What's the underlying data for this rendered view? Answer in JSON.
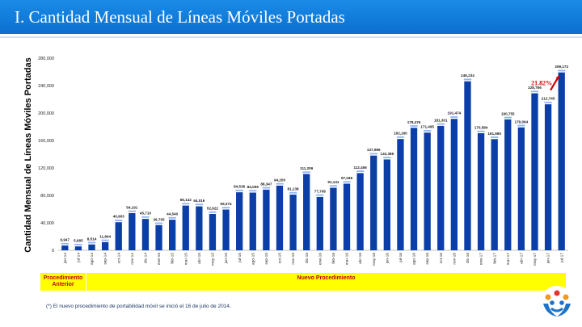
{
  "header": {
    "title": "I. Cantidad Mensual de Líneas Móviles Portadas"
  },
  "chart_data": {
    "type": "bar",
    "title": "",
    "ylabel": "Cantidad Mensual de Líneas Móviles Portadas",
    "xlabel": "",
    "ylim": [
      0,
      280000
    ],
    "yticks": [
      "0",
      "40,000",
      "80,000",
      "120,000",
      "160,000",
      "200,000",
      "240,000",
      "280,000"
    ],
    "ytick_values": [
      0,
      40000,
      80000,
      120000,
      160000,
      200000,
      240000,
      280000
    ],
    "categories": [
      "jun-14",
      "jul-14",
      "ago-14",
      "sep-14",
      "oct-14",
      "nov-14",
      "dic-14",
      "ene-15",
      "feb-15",
      "mar-15",
      "abr-15",
      "may-15",
      "jun-15",
      "jul-15",
      "ago-15",
      "sep-15",
      "oct-15",
      "nov-15",
      "dic-15",
      "ene-16",
      "feb-16",
      "mar-16",
      "abr-16",
      "may-16",
      "jun-16",
      "jul-16",
      "ago-16",
      "sep-16",
      "oct-16",
      "nov-16",
      "dic-16",
      "ene-17",
      "feb-17",
      "mar-17",
      "abr-17",
      "may-17",
      "jun-17",
      "jul-17"
    ],
    "values": [
      6947,
      5685,
      8514,
      11844,
      40903,
      54191,
      45710,
      36705,
      44540,
      65142,
      64016,
      52922,
      59374,
      84536,
      84059,
      88347,
      94200,
      81138,
      111209,
      77708,
      91141,
      97048,
      112456,
      137986,
      132385,
      162160,
      178476,
      171495,
      181301,
      191474,
      246234,
      170584,
      161980,
      190755,
      179094,
      228756,
      212745,
      259172
    ],
    "labels": [
      "6,947",
      "5,685",
      "8,514",
      "11,844",
      "40,903",
      "54,191",
      "45,710",
      "36,705",
      "44,540",
      "65,142",
      "64,016",
      "52,922",
      "59,374",
      "84,536",
      "84,059",
      "88,347",
      "94,200",
      "81,138",
      "111,209",
      "77,708",
      "91,141",
      "97,048",
      "112,456",
      "137,986",
      "132,385",
      "162,160",
      "178,476",
      "171,495",
      "181,301",
      "191,474",
      "246,234",
      "170,584",
      "161,980",
      "190,755",
      "179,094",
      "228,756",
      "212,745",
      "259,172"
    ],
    "colors": {
      "bar": "#0b3ea6",
      "cap": "#8fb4ff",
      "label": "#1a1a1a",
      "highlight": "#d00000"
    },
    "annotation": {
      "text": "21.82%",
      "from_index": 36,
      "to_index": 37
    },
    "segments": [
      {
        "label": "Procedimiento Anterior",
        "range": [
          0,
          1
        ]
      },
      {
        "label": "Nuevo Procedimiento",
        "range": [
          2,
          37
        ]
      }
    ]
  },
  "bands": {
    "left_label": "Procedimiento Anterior",
    "right_label": "Nuevo Procedimiento"
  },
  "footnote": "(*) El nuevo procedimiento de portabilidad móvil se inició el 16 de julio de 2014.",
  "logo": {
    "icon": "osiptel-people-logo-icon"
  }
}
